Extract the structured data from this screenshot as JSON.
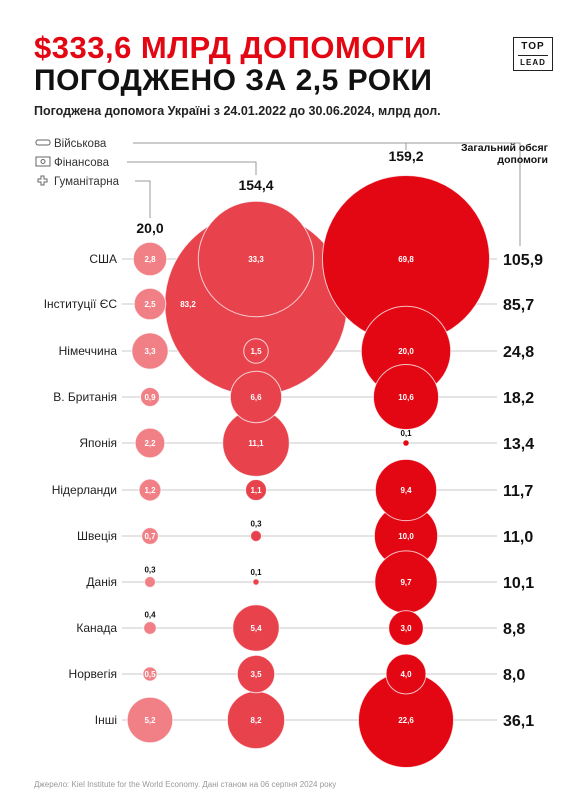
{
  "header": {
    "title_line1": "$333,6 МЛРД ДОПОМОГИ",
    "title_line2": "ПОГОДЖЕНО ЗА 2,5 РОКИ",
    "subtitle": "Погоджена допомога Україні з 24.01.2022 до 30.06.2024, млрд дол.",
    "logo_top": "TOP",
    "logo_bottom": "LEAD"
  },
  "footer": {
    "source": "Джерело: Kiel Institute for the World Economy. Дані станом на 06 серпня 2024 року"
  },
  "colors": {
    "military": "#e30613",
    "financial": "#e8424d",
    "humanitarian": "#f08086",
    "title_red": "#e30613",
    "line": "#c8c8c8"
  },
  "chart_data": {
    "type": "bubble-matrix",
    "legend": [
      {
        "key": "military",
        "label": "Військова",
        "icon": "tank-icon"
      },
      {
        "key": "financial",
        "label": "Фінансова",
        "icon": "banknote-icon"
      },
      {
        "key": "humanitarian",
        "label": "Гуманітарна",
        "icon": "cross-icon"
      }
    ],
    "total_header": "Загальний обсяг допомоги",
    "categories": [
      "США",
      "Інституції ЄС",
      "Німеччина",
      "В. Британія",
      "Японія",
      "Нідерланди",
      "Швеція",
      "Данія",
      "Канада",
      "Норвегія",
      "Інші"
    ],
    "series": [
      {
        "key": "humanitarian",
        "name": "Гуманітарна",
        "total": 20.0,
        "total_label": "20,0",
        "values": [
          2.8,
          2.5,
          3.3,
          0.9,
          2.2,
          1.2,
          0.7,
          0.3,
          0.4,
          0.5,
          5.2
        ],
        "labels": [
          "2,8",
          "2,5",
          "3,3",
          "0,9",
          "2,2",
          "1,2",
          "0,7",
          "0,3",
          "0,4",
          "0,5",
          "5,2"
        ]
      },
      {
        "key": "financial",
        "name": "Фінансова",
        "total": 154.4,
        "total_label": "154,4",
        "values": [
          33.3,
          83.2,
          1.5,
          6.6,
          11.1,
          1.1,
          0.3,
          0.1,
          5.4,
          3.5,
          8.2
        ],
        "labels": [
          "33,3",
          "83,2",
          "1,5",
          "6,6",
          "11,1",
          "1,1",
          "0,3",
          "0,1",
          "5,4",
          "3,5",
          "8,2"
        ]
      },
      {
        "key": "military",
        "name": "Військова",
        "total": 159.2,
        "total_label": "159,2",
        "values": [
          69.8,
          0,
          20.0,
          10.6,
          0.1,
          9.4,
          10.0,
          9.7,
          3.0,
          4.0,
          22.6
        ],
        "labels": [
          "69,8",
          "",
          "20,0",
          "10,6",
          "0,1",
          "9,4",
          "10,0",
          "9,7",
          "3,0",
          "4,0",
          "22,6"
        ]
      }
    ],
    "totals": [
      105.9,
      85.7,
      24.8,
      18.2,
      13.4,
      11.7,
      11.0,
      10.1,
      8.8,
      8.0,
      36.1
    ],
    "total_labels": [
      "105,9",
      "85,7",
      "24,8",
      "18,2",
      "13,4",
      "11,7",
      "11,0",
      "10,1",
      "8,8",
      "8,0",
      "36,1"
    ]
  }
}
